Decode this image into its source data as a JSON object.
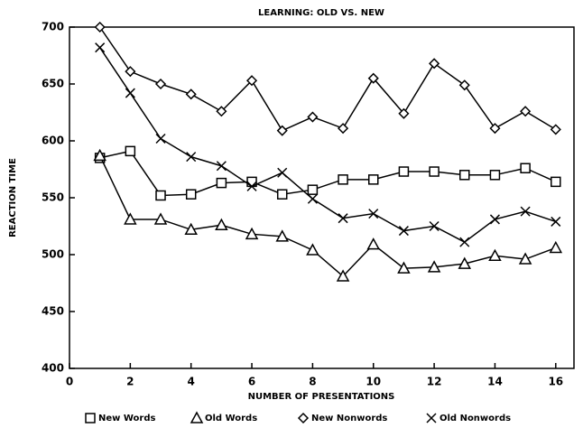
{
  "chart_data": {
    "type": "line",
    "title": "LEARNING: OLD VS. NEW",
    "x_label": "NUMBER OF PRESENTATIONS",
    "y_label": "REACTION TIME",
    "x": [
      1,
      2,
      3,
      4,
      5,
      6,
      7,
      8,
      9,
      10,
      11,
      12,
      13,
      14,
      15,
      16
    ],
    "series": [
      {
        "name": "New Words",
        "color": "#000000",
        "marker": "square",
        "values": [
          585,
          591,
          552,
          553,
          563,
          564,
          553,
          557,
          566,
          566,
          573,
          573,
          570,
          570,
          576,
          564
        ]
      },
      {
        "name": "Old Words",
        "color": "#000000",
        "marker": "triangle",
        "values": [
          587,
          531,
          531,
          522,
          526,
          518,
          516,
          504,
          481,
          509,
          488,
          489,
          492,
          499,
          496,
          506
        ]
      },
      {
        "name": "New Nonwords",
        "color": "#000000",
        "marker": "diamond",
        "values": [
          700,
          661,
          650,
          641,
          626,
          653,
          609,
          621,
          611,
          655,
          624,
          668,
          649,
          611,
          626,
          610
        ]
      },
      {
        "name": "Old Nonwords",
        "color": "#000000",
        "marker": "x",
        "values": [
          682,
          642,
          602,
          586,
          578,
          560,
          572,
          549,
          532,
          536,
          521,
          525,
          511,
          531,
          538,
          529
        ]
      }
    ],
    "xlim": [
      0,
      16.6
    ],
    "xticks": [
      0,
      2,
      4,
      6,
      8,
      10,
      12,
      14,
      16
    ],
    "ylim": [
      400,
      700
    ],
    "yticks": [
      400,
      450,
      500,
      550,
      600,
      650,
      700
    ],
    "legend": "bottom"
  }
}
